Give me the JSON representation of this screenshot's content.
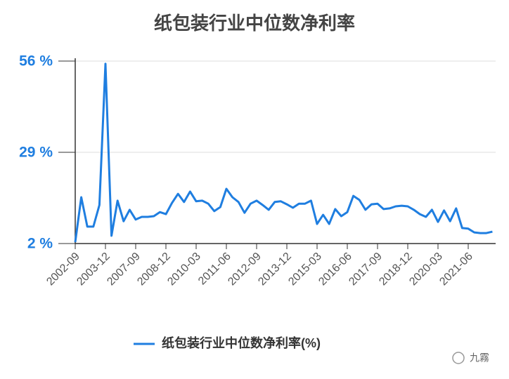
{
  "chart_data": {
    "type": "line",
    "title": "纸包装行业中位数净利率",
    "categories": [
      "2002-09",
      null,
      null,
      null,
      null,
      "2003-12",
      null,
      null,
      null,
      null,
      "2007-09",
      null,
      null,
      null,
      null,
      "2008-12",
      null,
      null,
      null,
      null,
      "2010-03",
      null,
      null,
      null,
      null,
      "2011-06",
      null,
      null,
      null,
      null,
      "2012-09",
      null,
      null,
      null,
      null,
      "2013-12",
      null,
      null,
      null,
      null,
      "2015-03",
      null,
      null,
      null,
      null,
      "2016-06",
      null,
      null,
      null,
      null,
      "2017-09",
      null,
      null,
      null,
      null,
      "2018-12",
      null,
      null,
      null,
      null,
      "2020-03",
      null,
      null,
      null,
      null,
      "2021-06",
      null,
      null,
      null,
      null
    ],
    "series": [
      {
        "name": "纸包装行业中位数净利率(%)",
        "color": "#1f7ee0",
        "values": [
          2.4,
          15.7,
          7.0,
          7.0,
          13.4,
          55.2,
          4.3,
          14.7,
          8.6,
          12.0,
          9.1,
          9.9,
          9.9,
          10.1,
          11.3,
          10.7,
          14.0,
          16.7,
          14.3,
          17.4,
          14.5,
          14.7,
          13.8,
          11.6,
          12.8,
          18.2,
          15.7,
          14.3,
          11.1,
          13.8,
          14.7,
          13.4,
          12.0,
          14.3,
          14.5,
          13.6,
          12.6,
          13.8,
          13.8,
          14.7,
          7.8,
          10.5,
          7.8,
          12.2,
          10.1,
          11.3,
          16.1,
          14.9,
          12.0,
          13.6,
          13.8,
          12.2,
          12.4,
          13.0,
          13.2,
          13.0,
          12.0,
          10.7,
          9.9,
          12.0,
          8.4,
          11.8,
          8.6,
          12.4,
          6.6,
          6.4,
          5.3,
          5.1,
          5.1,
          5.5
        ]
      }
    ],
    "ylim": [
      2,
      56
    ],
    "yticks": [
      {
        "value": 2,
        "label": "2 %"
      },
      {
        "value": 29,
        "label": "29 %"
      },
      {
        "value": 56,
        "label": "56 %"
      }
    ],
    "grid": true,
    "legend": "bottom",
    "watermark": "九霧"
  }
}
